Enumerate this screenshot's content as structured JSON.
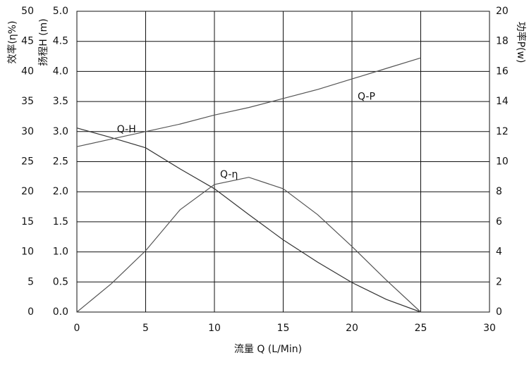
{
  "chart_data": {
    "type": "line",
    "xlabel": "流量 Q (L/Min)",
    "ylabel": "扬程H (m)",
    "y2label": "功率P(w)",
    "y3label": "效率(η%)",
    "x": [
      0,
      2.5,
      5,
      7.5,
      10,
      12.5,
      15,
      17.5,
      20,
      22.5,
      25
    ],
    "xlim": [
      0,
      30
    ],
    "xticks": [
      0,
      5,
      10,
      15,
      20,
      25,
      30
    ],
    "ylim": [
      0,
      5
    ],
    "yticks": [
      {
        "value": 0,
        "label": "0.0"
      },
      0.5,
      {
        "value": 1,
        "label": "1.0"
      },
      1.5,
      {
        "value": 2,
        "label": "2.0"
      },
      2.5,
      {
        "value": 3,
        "label": "3.0"
      },
      3.5,
      {
        "value": 4,
        "label": "4.0"
      },
      4.5,
      {
        "value": 5,
        "label": "5.0"
      }
    ],
    "y2lim": [
      0,
      20
    ],
    "y2ticks": [
      0,
      2,
      4,
      6,
      8,
      10,
      12,
      14,
      16,
      18,
      20
    ],
    "y3lim": [
      0,
      50
    ],
    "y3ticks": [
      0,
      5,
      10,
      15,
      20,
      25,
      30,
      35,
      40,
      45,
      50
    ],
    "grid": true,
    "series": [
      {
        "name": "Q-H",
        "color": "#333333",
        "axis": "y",
        "values": [
          3.06,
          2.9,
          2.73,
          2.38,
          2.05,
          1.62,
          1.2,
          0.83,
          0.49,
          0.21,
          0
        ]
      },
      {
        "name": "Q-P",
        "color": "#555555",
        "axis": "y2",
        "values": [
          11.0,
          11.5,
          12.0,
          12.5,
          13.1,
          13.6,
          14.2,
          14.8,
          15.5,
          16.2,
          16.9
        ]
      },
      {
        "name": "Q-η",
        "color": "#555555",
        "axis": "y3",
        "values": [
          0,
          4.7,
          10.2,
          17,
          21.2,
          22.4,
          20.5,
          16.2,
          10.9,
          5.3,
          0
        ]
      }
    ]
  }
}
